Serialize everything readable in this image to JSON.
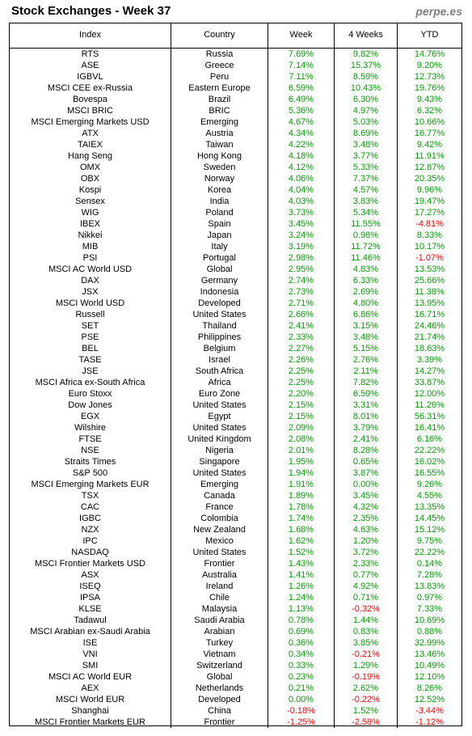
{
  "header": {
    "title": "Stock Exchanges - Week 37",
    "site": "perpe.es"
  },
  "table": {
    "columns": [
      "Index",
      "Country",
      "Week",
      "4 Weeks",
      "YTD"
    ],
    "rows": [
      [
        "RTS",
        "Russia",
        "7.69%",
        "9.82%",
        "14.76%"
      ],
      [
        "ASE",
        "Greece",
        "7.14%",
        "15.37%",
        "9.20%"
      ],
      [
        "IGBVL",
        "Peru",
        "7.11%",
        "8.59%",
        "12.73%"
      ],
      [
        "MSCI CEE ex-Russia",
        "Eastern Europe",
        "6.59%",
        "10.43%",
        "19.76%"
      ],
      [
        "Bovespa",
        "Brazil",
        "6.49%",
        "6.30%",
        "9.43%"
      ],
      [
        "MSCI BRIC",
        "BRIC",
        "5.36%",
        "4.97%",
        "6.32%"
      ],
      [
        "MSCI Emerging Markets USD",
        "Emerging",
        "4.67%",
        "5.03%",
        "10.66%"
      ],
      [
        "ATX",
        "Austria",
        "4.34%",
        "8.69%",
        "16.77%"
      ],
      [
        "TAIEX",
        "Taiwan",
        "4.22%",
        "3.48%",
        "9.42%"
      ],
      [
        "Hang Seng",
        "Hong Kong",
        "4.18%",
        "3.77%",
        "11.91%"
      ],
      [
        "OMX",
        "Sweden",
        "4.12%",
        "5.33%",
        "12.87%"
      ],
      [
        "OBX",
        "Norway",
        "4.06%",
        "7.37%",
        "20.35%"
      ],
      [
        "Kospi",
        "Korea",
        "4.04%",
        "4.57%",
        "9.96%"
      ],
      [
        "Sensex",
        "India",
        "4.03%",
        "3.83%",
        "19.47%"
      ],
      [
        "WIG",
        "Poland",
        "3.73%",
        "5.34%",
        "17.27%"
      ],
      [
        "IBEX",
        "Spain",
        "3.45%",
        "11.55%",
        "-4.81%"
      ],
      [
        "Nikkei",
        "Japan",
        "3.24%",
        "0.98%",
        "8.33%"
      ],
      [
        "MIB",
        "Italy",
        "3.19%",
        "11.72%",
        "10.17%"
      ],
      [
        "PSI",
        "Portugal",
        "2.98%",
        "11.46%",
        "-1.07%"
      ],
      [
        "MSCI AC World USD",
        "Global",
        "2.95%",
        "4.83%",
        "13.53%"
      ],
      [
        "DAX",
        "Germany",
        "2.74%",
        "6.33%",
        "25.66%"
      ],
      [
        "JSX",
        "Indonesia",
        "2.73%",
        "2.69%",
        "11.38%"
      ],
      [
        "MSCI World USD",
        "Developed",
        "2.71%",
        "4.80%",
        "13.95%"
      ],
      [
        "Russell",
        "United States",
        "2.66%",
        "6.86%",
        "16.71%"
      ],
      [
        "SET",
        "Thailand",
        "2.41%",
        "3.15%",
        "24.46%"
      ],
      [
        "PSE",
        "Philippines",
        "2.33%",
        "3.48%",
        "21.74%"
      ],
      [
        "BEL",
        "Belgium",
        "2.27%",
        "5.15%",
        "18.63%"
      ],
      [
        "TASE",
        "Israel",
        "2.26%",
        "2.76%",
        "3.39%"
      ],
      [
        "JSE",
        "South Africa",
        "2.25%",
        "2.11%",
        "14.27%"
      ],
      [
        "MSCI Africa ex-South Africa",
        "Africa",
        "2.25%",
        "7.82%",
        "33.87%"
      ],
      [
        "Euro Stoxx",
        "Euro Zone",
        "2.20%",
        "6.59%",
        "12.00%"
      ],
      [
        "Dow Jones",
        "United States",
        "2.15%",
        "3.31%",
        "11.26%"
      ],
      [
        "EGX",
        "Egypt",
        "2.15%",
        "8.01%",
        "56.31%"
      ],
      [
        "Wilshire",
        "United States",
        "2.09%",
        "3.79%",
        "16.41%"
      ],
      [
        "FTSE",
        "United Kingdom",
        "2.08%",
        "2.41%",
        "6.16%"
      ],
      [
        "NSE",
        "Nigeria",
        "2.01%",
        "8.28%",
        "22.22%"
      ],
      [
        "Straits Times",
        "Singapore",
        "1.95%",
        "0.65%",
        "16.02%"
      ],
      [
        "S&P 500",
        "United States",
        "1.94%",
        "3.87%",
        "16.55%"
      ],
      [
        "MSCI Emerging Markets EUR",
        "Emerging",
        "1.91%",
        "0.00%",
        "9.26%"
      ],
      [
        "TSX",
        "Canada",
        "1.89%",
        "3.45%",
        "4.55%"
      ],
      [
        "CAC",
        "France",
        "1.78%",
        "4.32%",
        "13.35%"
      ],
      [
        "IGBC",
        "Colombia",
        "1.74%",
        "2.35%",
        "14.45%"
      ],
      [
        "NZX",
        "New Zealand",
        "1.68%",
        "4.63%",
        "15.12%"
      ],
      [
        "IPC",
        "Mexico",
        "1.62%",
        "1.20%",
        "9.75%"
      ],
      [
        "NASDAQ",
        "United States",
        "1.52%",
        "3.72%",
        "22.22%"
      ],
      [
        "MSCI Frontier Markets USD",
        "Frontier",
        "1.43%",
        "2.33%",
        "0.14%"
      ],
      [
        "ASX",
        "Australia",
        "1.41%",
        "0.77%",
        "7.28%"
      ],
      [
        "ISEQ",
        "Ireland",
        "1.26%",
        "4.92%",
        "13.83%"
      ],
      [
        "IPSA",
        "Chile",
        "1.24%",
        "0.71%",
        "0.97%"
      ],
      [
        "KLSE",
        "Malaysia",
        "1.13%",
        "-0.32%",
        "7.33%"
      ],
      [
        "Tadawul",
        "Saudi Arabia",
        "0.78%",
        "1.44%",
        "10.69%"
      ],
      [
        "MSCI Arabian ex-Saudi Arabia",
        "Arabian",
        "0.69%",
        "0.83%",
        "0.88%"
      ],
      [
        "ISE",
        "Turkey",
        "0.36%",
        "3.85%",
        "32.99%"
      ],
      [
        "VNI",
        "Vietnam",
        "0.34%",
        "-0.21%",
        "13.46%"
      ],
      [
        "SMI",
        "Switzerland",
        "0.33%",
        "1.29%",
        "10.49%"
      ],
      [
        "MSCI AC World EUR",
        "Global",
        "0.23%",
        "-0.19%",
        "12.10%"
      ],
      [
        "AEX",
        "Netherlands",
        "0.21%",
        "2.62%",
        "8.26%"
      ],
      [
        "MSCI World EUR",
        "Developed",
        "0.00%",
        "-0.22%",
        "12.52%"
      ],
      [
        "Shanghai",
        "China",
        "-0.18%",
        "1.52%",
        "-3.44%"
      ],
      [
        "MSCI Frontier Markets EUR",
        "Frontier",
        "-1.25%",
        "-2.58%",
        "-1.12%"
      ]
    ]
  }
}
